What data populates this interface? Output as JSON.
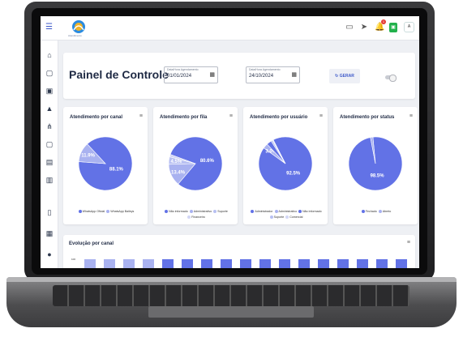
{
  "colors": {
    "primary": "#6272e6",
    "secondary": "#a9b2f0",
    "tertiary": "#b8c0f2",
    "quaternary": "#d2d6f5"
  },
  "app": {
    "logo_text": "Atendimento",
    "avatar": "A"
  },
  "header": {
    "notification_count": "1"
  },
  "title": {
    "page_title": "Painel de Controle"
  },
  "filters": {
    "start_label": "Data/Hora Agendamento",
    "start_value": "01/01/2024",
    "end_label": "Data/Hora Agendamento",
    "end_value": "24/10/2024",
    "generate_label": "GERAR"
  },
  "charts": [
    {
      "title": "Atendimento por canal",
      "slices": [
        {
          "label": "WhatsApp Oficial",
          "value": 88.1,
          "color": "#6272e6"
        },
        {
          "label": "WhatsApp Baileys",
          "value": 11.9,
          "color": "#a9b2f0"
        }
      ],
      "display": [
        "88.1%",
        "11.9%"
      ]
    },
    {
      "title": "Atendimento por fila",
      "slices": [
        {
          "label": "Não informado",
          "value": 80.6,
          "color": "#6272e6"
        },
        {
          "label": "Administrativo",
          "value": 13.4,
          "color": "#a9b2f0"
        },
        {
          "label": "Suporte",
          "value": 4.5,
          "color": "#b8c0f2"
        },
        {
          "label": "Financeiro",
          "value": 1.5,
          "color": "#d2d6f5"
        }
      ],
      "display": [
        "80.6%",
        "13.4%",
        "4.5%",
        ""
      ]
    },
    {
      "title": "Atendimento por usuário",
      "slices": [
        {
          "label": "Administrador",
          "value": 92.5,
          "color": "#6272e6"
        },
        {
          "label": "Administrativo",
          "value": 3.0,
          "color": "#a9b2f0"
        },
        {
          "label": "Não informado",
          "value": 3.0,
          "color": "#6272e6"
        },
        {
          "label": "Suporte",
          "value": 1.0,
          "color": "#b8c0f2"
        },
        {
          "label": "Comercial",
          "value": 0.5,
          "color": "#d2d6f5"
        }
      ],
      "display": [
        "92.5%",
        "3.0%",
        "",
        "",
        ""
      ]
    },
    {
      "title": "Atendimento por status",
      "slices": [
        {
          "label": "Fechado",
          "value": 98.5,
          "color": "#6272e6"
        },
        {
          "label": "Aberto",
          "value": 1.5,
          "color": "#a9b2f0"
        }
      ],
      "display": [
        "98.5%",
        ""
      ]
    }
  ],
  "evolution": {
    "title": "Evolução por canal",
    "axis_label": "100"
  }
}
